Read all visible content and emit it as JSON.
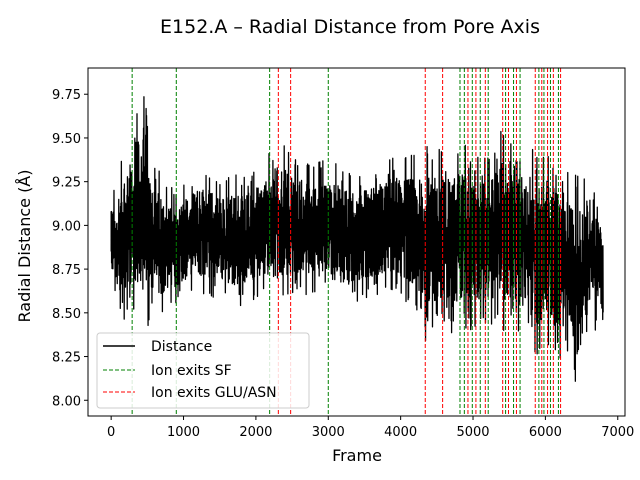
{
  "chart_data": {
    "type": "line",
    "title": "E152.A – Radial Distance from Pore Axis",
    "xlabel": "Frame",
    "ylabel": "Radial Distance (Å)",
    "xlim": [
      -320,
      7100
    ],
    "ylim": [
      7.91,
      9.9
    ],
    "xticks": [
      0,
      1000,
      2000,
      3000,
      4000,
      5000,
      6000,
      7000
    ],
    "xtick_labels": [
      "0",
      "1000",
      "2000",
      "3000",
      "4000",
      "5000",
      "6000",
      "7000"
    ],
    "yticks": [
      8.0,
      8.25,
      8.5,
      8.75,
      9.0,
      9.25,
      9.5,
      9.75
    ],
    "ytick_labels": [
      "8.00",
      "8.25",
      "8.50",
      "8.75",
      "9.00",
      "9.25",
      "9.50",
      "9.75"
    ],
    "grid": false,
    "legend_position": "lower-left",
    "series": [
      {
        "name": "Distance",
        "color": "#000000",
        "x_start": 0,
        "x_end": 6800,
        "envelope_x": [
          0,
          150,
          300,
          450,
          600,
          900,
          1200,
          1500,
          1800,
          2100,
          2300,
          2500,
          2800,
          3000,
          3300,
          3600,
          3900,
          4200,
          4350,
          4500,
          4700,
          4850,
          5000,
          5200,
          5400,
          5600,
          5800,
          5900,
          6000,
          6100,
          6200,
          6350,
          6450,
          6600,
          6800
        ],
        "envelope_low": [
          8.66,
          8.45,
          8.52,
          8.42,
          8.44,
          8.56,
          8.6,
          8.58,
          8.52,
          8.62,
          8.55,
          8.6,
          8.6,
          8.57,
          8.55,
          8.6,
          8.62,
          8.52,
          8.2,
          8.42,
          8.35,
          8.42,
          8.4,
          8.45,
          8.4,
          8.4,
          8.3,
          8.26,
          8.32,
          8.3,
          8.24,
          8.3,
          7.99,
          8.38,
          8.4
        ],
        "envelope_high": [
          9.15,
          9.38,
          9.6,
          9.8,
          9.35,
          9.18,
          9.35,
          9.27,
          9.3,
          9.35,
          9.5,
          9.4,
          9.35,
          9.38,
          9.3,
          9.32,
          9.4,
          9.4,
          9.45,
          9.45,
          9.42,
          9.5,
          9.4,
          9.38,
          9.55,
          9.45,
          9.5,
          9.4,
          9.45,
          9.45,
          9.4,
          9.3,
          9.28,
          9.31,
          9.05
        ],
        "mean": 8.93
      },
      {
        "name": "Ion exits SF",
        "color": "#008000",
        "style": "dashed",
        "x": [
          290,
          900,
          2190,
          3000,
          4820,
          4880,
          4990,
          5100,
          5210,
          5450,
          5560,
          5650,
          5910,
          5980,
          6070,
          6180
        ]
      },
      {
        "name": "Ion exits GLU/ASN",
        "color": "#ff0000",
        "style": "dashed",
        "x": [
          2310,
          2480,
          4340,
          4580,
          4930,
          5040,
          5170,
          5410,
          5490,
          5600,
          5860,
          5950,
          6030,
          6110,
          6210
        ]
      }
    ]
  }
}
